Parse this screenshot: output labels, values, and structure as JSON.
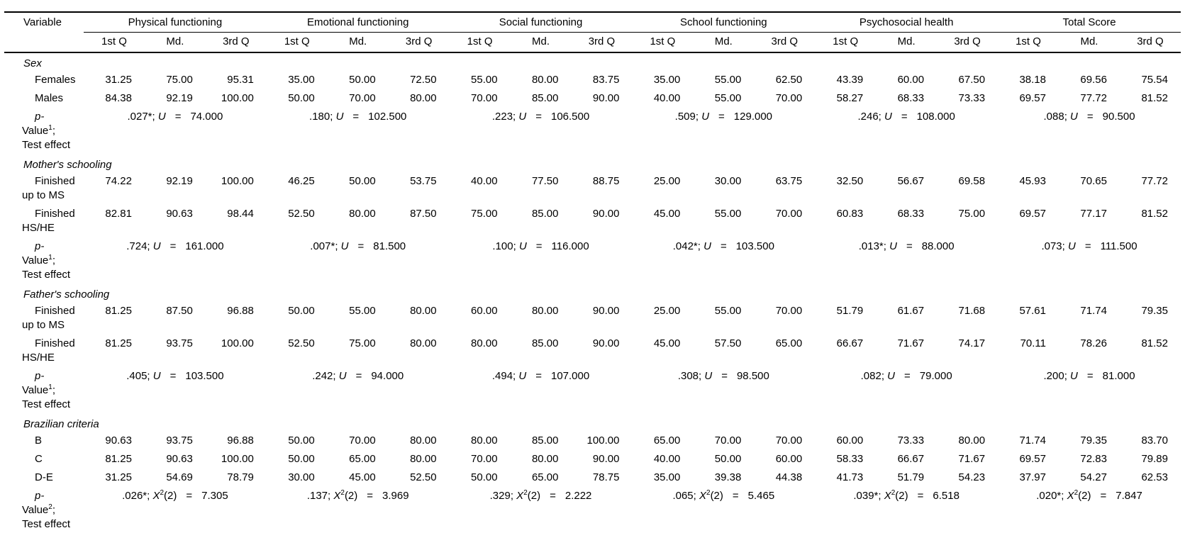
{
  "table": {
    "variable_header": "Variable",
    "eq": "=",
    "sep": ";",
    "groups": [
      {
        "label": "Physical functioning"
      },
      {
        "label": "Emotional functioning"
      },
      {
        "label": "Social functioning"
      },
      {
        "label": "School functioning"
      },
      {
        "label": "Psychosocial health"
      },
      {
        "label": "Total Score"
      }
    ],
    "subheaders": [
      "1st Q",
      "Md.",
      "3rd Q"
    ],
    "sections": [
      {
        "title": "Sex",
        "rows": [
          {
            "label": "Females",
            "values": [
              "31.25",
              "75.00",
              "95.31",
              "35.00",
              "50.00",
              "72.50",
              "55.00",
              "80.00",
              "83.75",
              "35.00",
              "55.00",
              "62.50",
              "43.39",
              "60.00",
              "67.50",
              "38.18",
              "69.56",
              "75.54"
            ]
          },
          {
            "label": "Males",
            "values": [
              "84.38",
              "92.19",
              "100.00",
              "50.00",
              "70.00",
              "80.00",
              "70.00",
              "85.00",
              "90.00",
              "40.00",
              "55.00",
              "70.00",
              "58.27",
              "68.33",
              "73.33",
              "69.57",
              "77.72",
              "81.52"
            ]
          }
        ],
        "stat": {
          "label": {
            "line1": "p-",
            "line2_word": "Value",
            "line2_sup": "1",
            "line2_end": ";",
            "line3": "Test effect"
          },
          "symbol": {
            "base": "U"
          },
          "entries": [
            {
              "p": ".027*",
              "value": "74.000"
            },
            {
              "p": ".180",
              "value": "102.500"
            },
            {
              "p": ".223",
              "value": "106.500"
            },
            {
              "p": ".509",
              "value": "129.000"
            },
            {
              "p": ".246",
              "value": "108.000"
            },
            {
              "p": ".088",
              "value": "90.500"
            }
          ]
        }
      },
      {
        "title": "Mother's schooling",
        "rows": [
          {
            "label": "Finished",
            "label2": "up to MS",
            "values": [
              "74.22",
              "92.19",
              "100.00",
              "46.25",
              "50.00",
              "53.75",
              "40.00",
              "77.50",
              "88.75",
              "25.00",
              "30.00",
              "63.75",
              "32.50",
              "56.67",
              "69.58",
              "45.93",
              "70.65",
              "77.72"
            ]
          },
          {
            "label": "Finished",
            "label2": "HS/HE",
            "values": [
              "82.81",
              "90.63",
              "98.44",
              "52.50",
              "80.00",
              "87.50",
              "75.00",
              "85.00",
              "90.00",
              "45.00",
              "55.00",
              "70.00",
              "60.83",
              "68.33",
              "75.00",
              "69.57",
              "77.17",
              "81.52"
            ]
          }
        ],
        "stat": {
          "label": {
            "line1": "p-",
            "line2_word": "Value",
            "line2_sup": "1",
            "line2_end": ";",
            "line3": "Test effect"
          },
          "symbol": {
            "base": "U"
          },
          "entries": [
            {
              "p": ".724",
              "value": "161.000"
            },
            {
              "p": ".007*",
              "value": "81.500"
            },
            {
              "p": ".100",
              "value": "116.000"
            },
            {
              "p": ".042*",
              "value": "103.500"
            },
            {
              "p": ".013*",
              "value": "88.000"
            },
            {
              "p": ".073",
              "value": "111.500"
            }
          ]
        }
      },
      {
        "title": "Father's schooling",
        "rows": [
          {
            "label": "Finished",
            "label2": "up to MS",
            "values": [
              "81.25",
              "87.50",
              "96.88",
              "50.00",
              "55.00",
              "80.00",
              "60.00",
              "80.00",
              "90.00",
              "25.00",
              "55.00",
              "70.00",
              "51.79",
              "61.67",
              "71.68",
              "57.61",
              "71.74",
              "79.35"
            ]
          },
          {
            "label": "Finished",
            "label2": "HS/HE",
            "values": [
              "81.25",
              "93.75",
              "100.00",
              "52.50",
              "75.00",
              "80.00",
              "80.00",
              "85.00",
              "90.00",
              "45.00",
              "57.50",
              "65.00",
              "66.67",
              "71.67",
              "74.17",
              "70.11",
              "78.26",
              "81.52"
            ]
          }
        ],
        "stat": {
          "label": {
            "line1": "p-",
            "line2_word": "Value",
            "line2_sup": "1",
            "line2_end": ";",
            "line3": "Test effect"
          },
          "symbol": {
            "base": "U"
          },
          "entries": [
            {
              "p": ".405",
              "value": "103.500"
            },
            {
              "p": ".242",
              "value": "94.000"
            },
            {
              "p": ".494",
              "value": "107.000"
            },
            {
              "p": ".308",
              "value": "98.500"
            },
            {
              "p": ".082",
              "value": "79.000"
            },
            {
              "p": ".200",
              "value": "81.000"
            }
          ]
        }
      },
      {
        "title": "Brazilian criteria",
        "rows": [
          {
            "label": "B",
            "values": [
              "90.63",
              "93.75",
              "96.88",
              "50.00",
              "70.00",
              "80.00",
              "80.00",
              "85.00",
              "100.00",
              "65.00",
              "70.00",
              "70.00",
              "60.00",
              "73.33",
              "80.00",
              "71.74",
              "79.35",
              "83.70"
            ]
          },
          {
            "label": "C",
            "values": [
              "81.25",
              "90.63",
              "100.00",
              "50.00",
              "65.00",
              "80.00",
              "70.00",
              "80.00",
              "90.00",
              "40.00",
              "50.00",
              "60.00",
              "58.33",
              "66.67",
              "71.67",
              "69.57",
              "72.83",
              "79.89"
            ]
          },
          {
            "label": "D-E",
            "values": [
              "31.25",
              "54.69",
              "78.79",
              "30.00",
              "45.00",
              "52.50",
              "50.00",
              "65.00",
              "78.75",
              "35.00",
              "39.38",
              "44.38",
              "41.73",
              "51.79",
              "54.23",
              "37.97",
              "54.27",
              "62.53"
            ]
          }
        ],
        "stat": {
          "label": {
            "line1": "p-",
            "line2_word": "Value",
            "line2_sup": "2",
            "line2_end": ";",
            "line3": "Test effect"
          },
          "symbol": {
            "base": "X",
            "sup": "2",
            "args": "(2)"
          },
          "entries": [
            {
              "p": ".026*",
              "value": "7.305"
            },
            {
              "p": ".137",
              "value": "3.969"
            },
            {
              "p": ".329",
              "value": "2.222"
            },
            {
              "p": ".065",
              "value": "5.465"
            },
            {
              "p": ".039*",
              "value": "6.518"
            },
            {
              "p": ".020*",
              "value": "7.847"
            }
          ]
        }
      }
    ]
  }
}
